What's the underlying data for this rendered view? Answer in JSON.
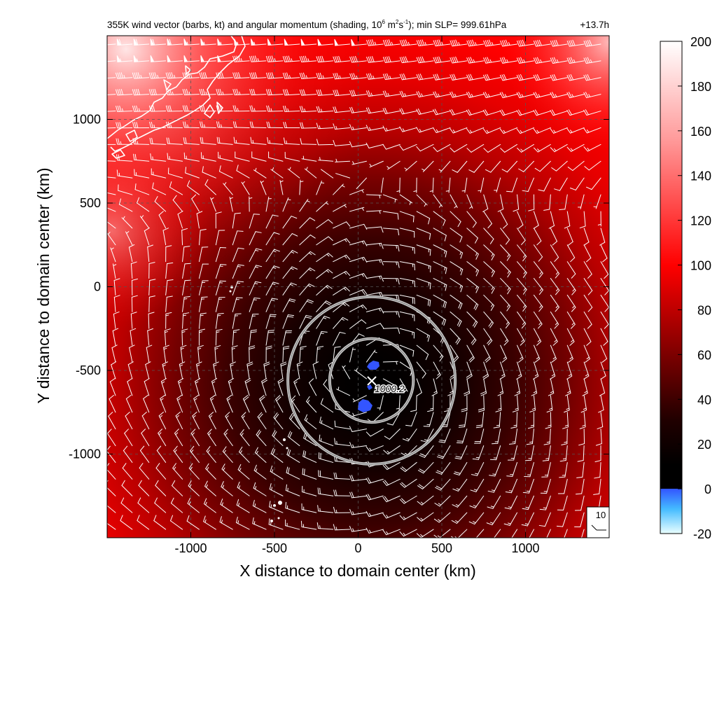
{
  "chart_data": {
    "type": "heatmap",
    "title": {
      "part1": "355K wind vector (barbs, kt) and angular momentum (shading, 10",
      "exp1": "6",
      "part2": " m",
      "exp2": "2",
      "part3": "s",
      "exp3": "-1",
      "part4": "); min SLP= 999.61hPa",
      "time": "+13.7h"
    },
    "xlabel": "X distance to domain center (km)",
    "ylabel": "Y distance to domain center (km)",
    "xlim": [
      -1500,
      1500
    ],
    "ylim": [
      -1500,
      1500
    ],
    "x_ticks": [
      -1000,
      -500,
      0,
      500,
      1000
    ],
    "y_ticks": [
      -1000,
      -500,
      0,
      500,
      1000
    ],
    "x_tick_labels": [
      "-1000",
      "-500",
      "0",
      "500",
      "1000"
    ],
    "y_tick_labels": [
      "-1000",
      "-500",
      "0",
      "500",
      "1000"
    ],
    "grid": "dashed",
    "colorbar": {
      "range": [
        -20,
        200
      ],
      "ticks": [
        200,
        180,
        160,
        140,
        120,
        100,
        80,
        60,
        40,
        20,
        0,
        -20
      ],
      "tick_labels": [
        "200",
        "180",
        "160",
        "140",
        "120",
        "100",
        "80",
        "60",
        "40",
        "20",
        "0",
        "-20"
      ],
      "stops": [
        {
          "value": 200,
          "color": "#ffffff"
        },
        {
          "value": 100,
          "color": "#ff0000"
        },
        {
          "value": 50,
          "color": "#7a0000"
        },
        {
          "value": 25,
          "color": "#2a0000"
        },
        {
          "value": 5,
          "color": "#000000"
        },
        {
          "value": 0,
          "color": "#3355ff"
        },
        {
          "value": -20,
          "color": "#e8ffff"
        }
      ]
    },
    "momentum_field": {
      "center_km": [
        80,
        -560
      ],
      "min_value": 5,
      "far_field_value": 100,
      "northwest_value": 160
    },
    "storm_center_km": [
      80,
      -560
    ],
    "slp_label": "1000.2",
    "range_rings_km": [
      500,
      1000
    ],
    "barb_spacing_km": 100,
    "barb_legend": {
      "speed_kt": 10,
      "label": "10"
    },
    "negative_patches_km": [
      [
        90,
        -470
      ],
      [
        40,
        -700
      ],
      [
        70,
        -610
      ]
    ]
  }
}
